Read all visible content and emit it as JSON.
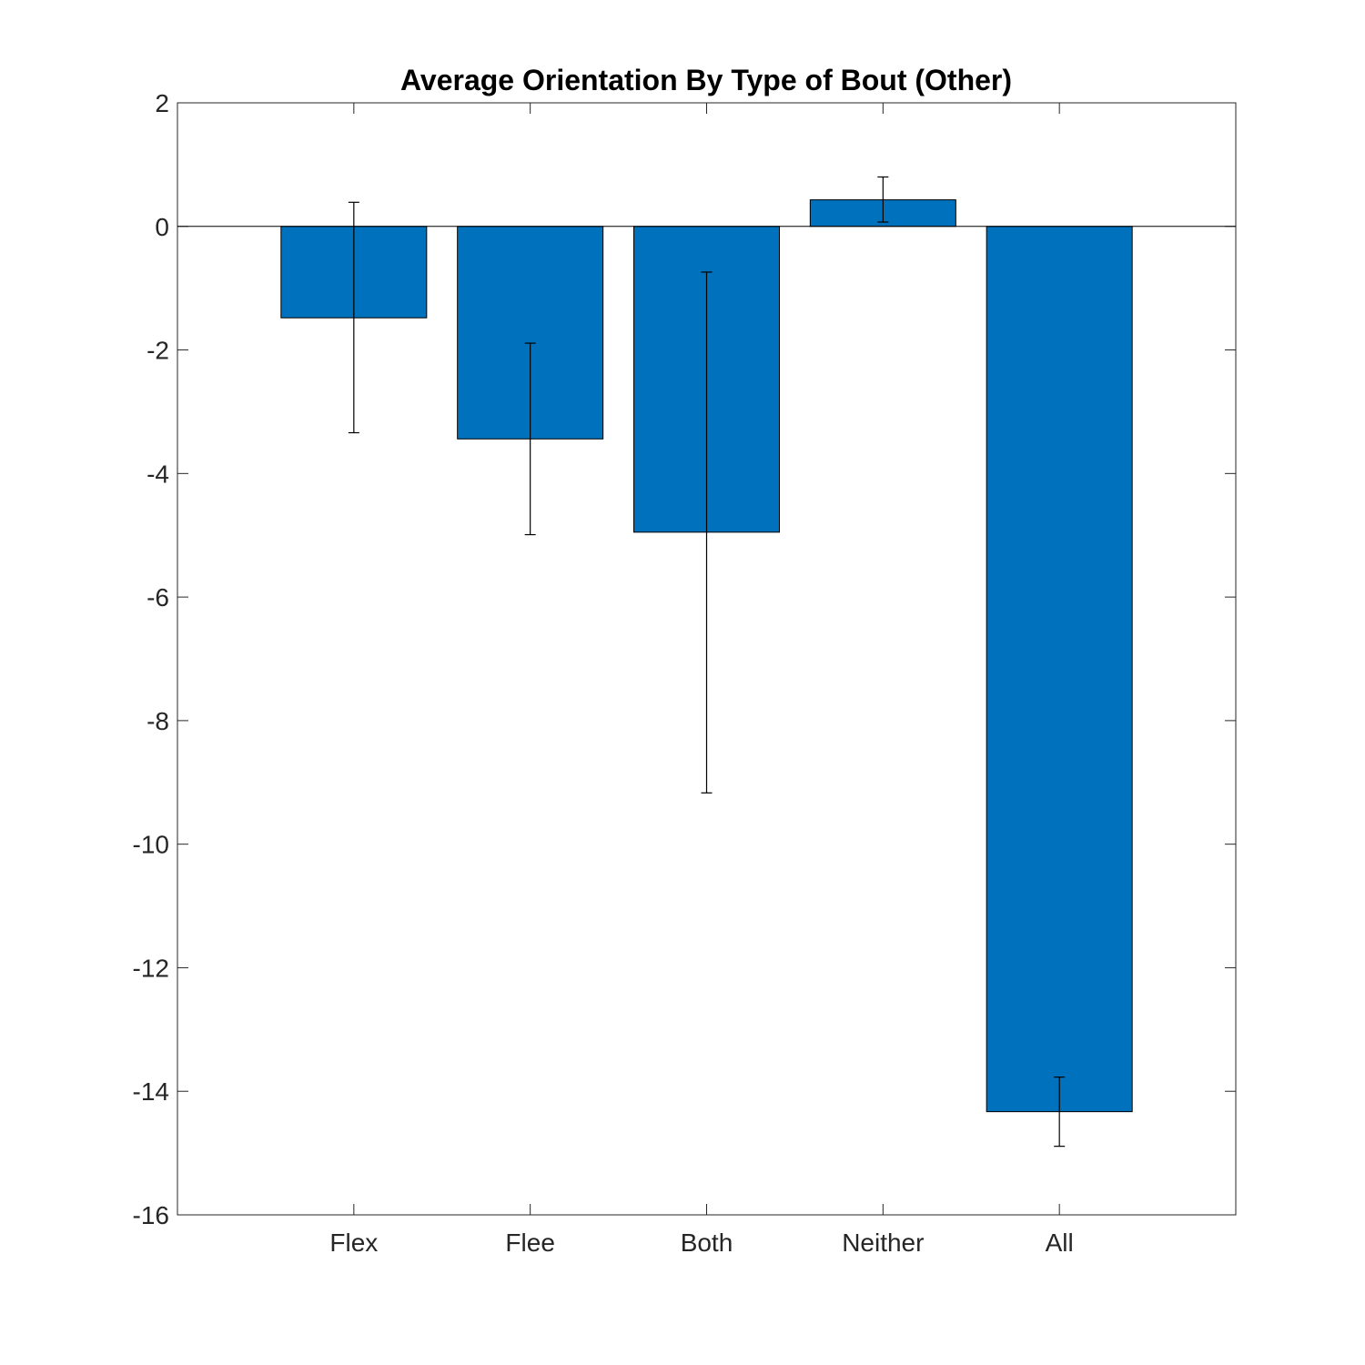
{
  "chart_data": {
    "type": "bar",
    "title": "Average Orientation By Type of Bout (Other)",
    "xlabel": "",
    "ylabel": "",
    "categories": [
      "Flex",
      "Flee",
      "Both",
      "Neither",
      "All"
    ],
    "values": [
      -1.48,
      -3.44,
      -4.95,
      0.43,
      -14.33
    ],
    "error_low": [
      -3.34,
      -4.99,
      -9.17,
      0.07,
      -14.89
    ],
    "error_high": [
      0.39,
      -1.89,
      -0.74,
      0.8,
      -13.77
    ],
    "ylim": [
      -16,
      2
    ],
    "yticks": [
      2,
      0,
      -2,
      -4,
      -6,
      -8,
      -10,
      -12,
      -14,
      -16
    ],
    "ytick_labels": [
      "2",
      "0",
      "-2",
      "-4",
      "-6",
      "-8",
      "-10",
      "-12",
      "-14",
      "-16"
    ],
    "bar_color": "#0072BD",
    "grid": false,
    "legend": "none"
  }
}
